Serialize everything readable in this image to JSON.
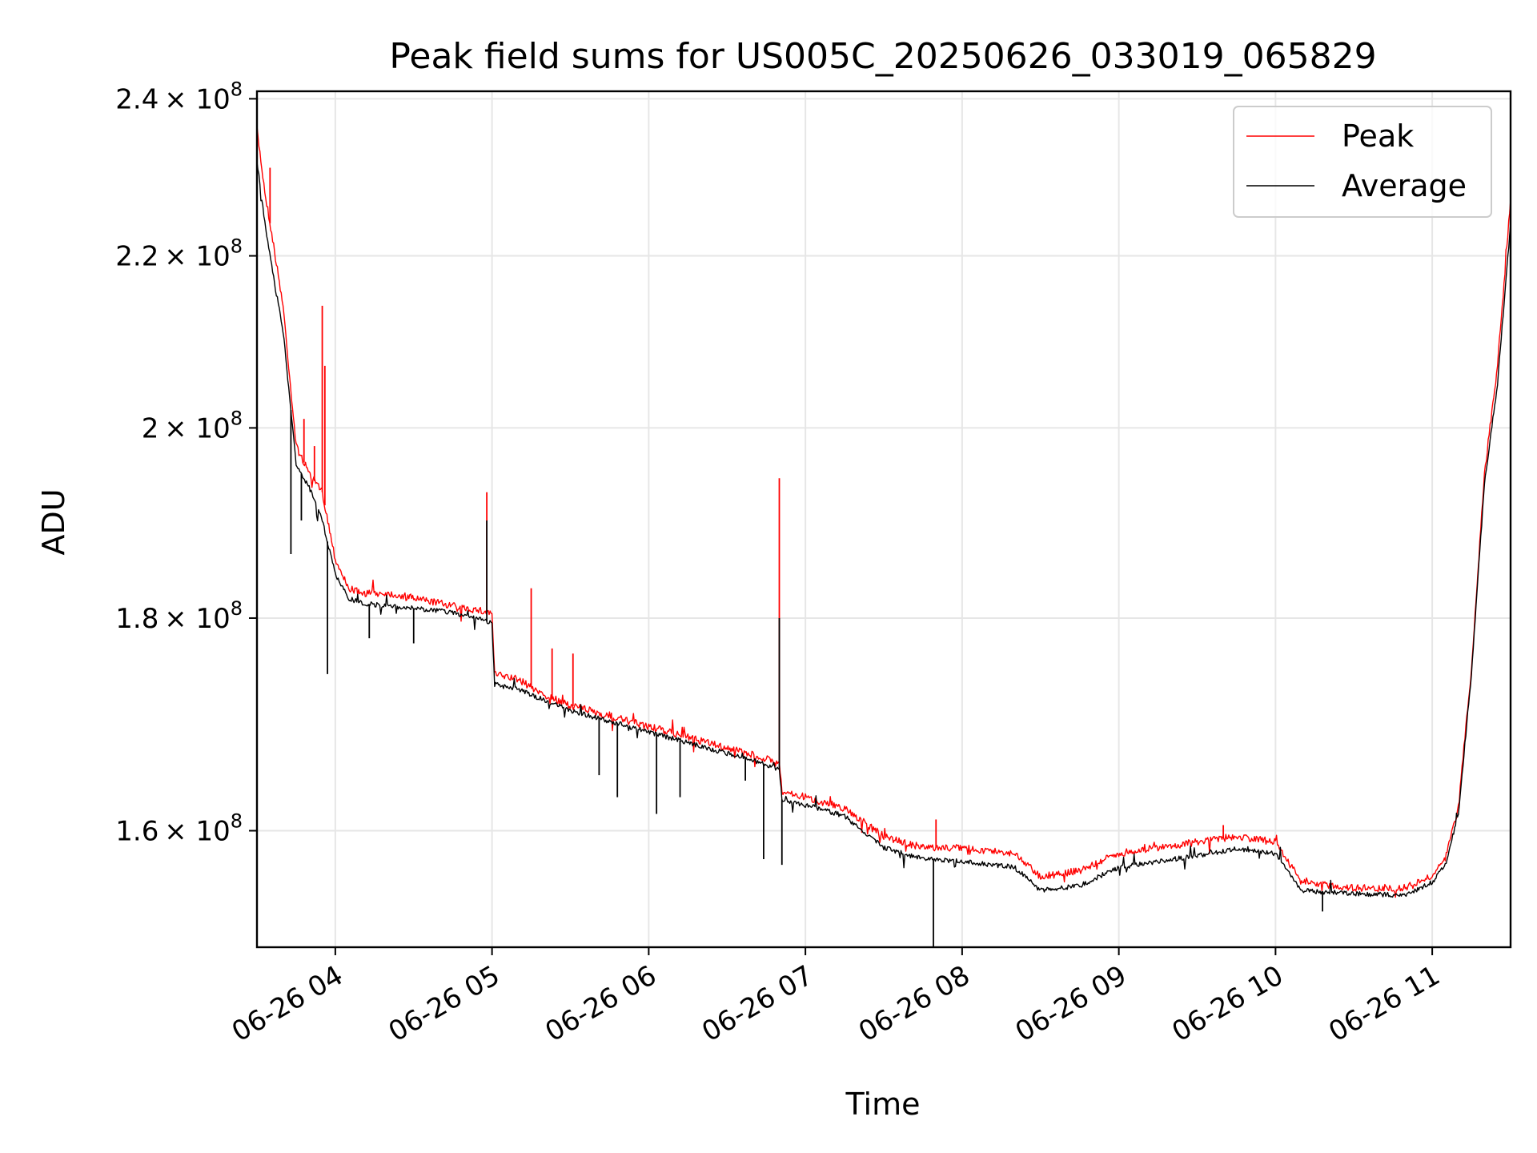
{
  "chart_data": {
    "type": "line",
    "title": "Peak field sums for US005C_20250626_033019_065829",
    "xlabel": "Time",
    "ylabel": "ADU",
    "y_scale": "log",
    "xlim": [
      "2025-06-26 03:30",
      "2025-06-26 11:30"
    ],
    "ylim": [
      150000000,
      241000000
    ],
    "grid": true,
    "legend_position": "top-right",
    "x_ticks": [
      {
        "label": "06-26 04",
        "t": "2025-06-26 04:00"
      },
      {
        "label": "06-26 05",
        "t": "2025-06-26 05:00"
      },
      {
        "label": "06-26 06",
        "t": "2025-06-26 06:00"
      },
      {
        "label": "06-26 07",
        "t": "2025-06-26 07:00"
      },
      {
        "label": "06-26 08",
        "t": "2025-06-26 08:00"
      },
      {
        "label": "06-26 09",
        "t": "2025-06-26 09:00"
      },
      {
        "label": "06-26 10",
        "t": "2025-06-26 10:00"
      },
      {
        "label": "06-26 11",
        "t": "2025-06-26 11:00"
      }
    ],
    "y_ticks": [
      {
        "mantissa": "2.4",
        "value": 240000000
      },
      {
        "mantissa": "2.2",
        "value": 220000000
      },
      {
        "mantissa": "2",
        "value": 200000000
      },
      {
        "mantissa": "1.8",
        "value": 180000000
      },
      {
        "mantissa": "1.6",
        "value": 160000000
      }
    ],
    "y_tick_suffix": "× 10",
    "y_tick_exponent": "8",
    "series": [
      {
        "name": "Peak",
        "color": "#ff0000",
        "points": [
          [
            "2025-06-26 03:30",
            236000000
          ],
          [
            "2025-06-26 03:33",
            228000000
          ],
          [
            "2025-06-26 03:36",
            222000000
          ],
          [
            "2025-06-26 03:40",
            214000000
          ],
          [
            "2025-06-26 03:45",
            198000000
          ],
          [
            "2025-06-26 03:50",
            195000000
          ],
          [
            "2025-06-26 03:55",
            193000000
          ],
          [
            "2025-06-26 04:00",
            186000000
          ],
          [
            "2025-06-26 04:05",
            183000000
          ],
          [
            "2025-06-26 04:10",
            182500000
          ],
          [
            "2025-06-26 04:20",
            182500000
          ],
          [
            "2025-06-26 04:30",
            182000000
          ],
          [
            "2025-06-26 04:40",
            181500000
          ],
          [
            "2025-06-26 04:50",
            181000000
          ],
          [
            "2025-06-26 05:00",
            180500000
          ],
          [
            "2025-06-26 05:01",
            174500000
          ],
          [
            "2025-06-26 05:10",
            174000000
          ],
          [
            "2025-06-26 05:20",
            172500000
          ],
          [
            "2025-06-26 05:30",
            171500000
          ],
          [
            "2025-06-26 05:45",
            170500000
          ],
          [
            "2025-06-26 06:00",
            169500000
          ],
          [
            "2025-06-26 06:15",
            168500000
          ],
          [
            "2025-06-26 06:30",
            167500000
          ],
          [
            "2025-06-26 06:45",
            166500000
          ],
          [
            "2025-06-26 06:50",
            166000000
          ],
          [
            "2025-06-26 06:51",
            163500000
          ],
          [
            "2025-06-26 07:00",
            163000000
          ],
          [
            "2025-06-26 07:15",
            162000000
          ],
          [
            "2025-06-26 07:30",
            159500000
          ],
          [
            "2025-06-26 07:45",
            158500000
          ],
          [
            "2025-06-26 08:00",
            158500000
          ],
          [
            "2025-06-26 08:20",
            158000000
          ],
          [
            "2025-06-26 08:30",
            156000000
          ],
          [
            "2025-06-26 08:45",
            156500000
          ],
          [
            "2025-06-26 09:00",
            158000000
          ],
          [
            "2025-06-26 09:15",
            158500000
          ],
          [
            "2025-06-26 09:30",
            159000000
          ],
          [
            "2025-06-26 09:45",
            159500000
          ],
          [
            "2025-06-26 10:00",
            159000000
          ],
          [
            "2025-06-26 10:10",
            155500000
          ],
          [
            "2025-06-26 10:30",
            155000000
          ],
          [
            "2025-06-26 10:50",
            155000000
          ],
          [
            "2025-06-26 11:00",
            156000000
          ],
          [
            "2025-06-26 11:05",
            157500000
          ],
          [
            "2025-06-26 11:10",
            162000000
          ],
          [
            "2025-06-26 11:15",
            175000000
          ],
          [
            "2025-06-26 11:20",
            195000000
          ],
          [
            "2025-06-26 11:25",
            207000000
          ],
          [
            "2025-06-26 11:30",
            227000000
          ]
        ]
      },
      {
        "name": "Average",
        "color": "#000000",
        "points": [
          [
            "2025-06-26 03:30",
            232000000
          ],
          [
            "2025-06-26 03:33",
            224000000
          ],
          [
            "2025-06-26 03:36",
            218000000
          ],
          [
            "2025-06-26 03:40",
            211000000
          ],
          [
            "2025-06-26 03:45",
            196000000
          ],
          [
            "2025-06-26 03:50",
            193500000
          ],
          [
            "2025-06-26 03:55",
            190000000
          ],
          [
            "2025-06-26 04:00",
            184500000
          ],
          [
            "2025-06-26 04:05",
            182000000
          ],
          [
            "2025-06-26 04:10",
            181500000
          ],
          [
            "2025-06-26 04:20",
            181200000
          ],
          [
            "2025-06-26 04:30",
            181000000
          ],
          [
            "2025-06-26 04:40",
            180700000
          ],
          [
            "2025-06-26 04:50",
            180300000
          ],
          [
            "2025-06-26 05:00",
            179500000
          ],
          [
            "2025-06-26 05:01",
            173500000
          ],
          [
            "2025-06-26 05:10",
            173000000
          ],
          [
            "2025-06-26 05:20",
            172000000
          ],
          [
            "2025-06-26 05:30",
            171000000
          ],
          [
            "2025-06-26 05:45",
            170000000
          ],
          [
            "2025-06-26 06:00",
            169000000
          ],
          [
            "2025-06-26 06:15",
            168000000
          ],
          [
            "2025-06-26 06:30",
            167000000
          ],
          [
            "2025-06-26 06:45",
            166000000
          ],
          [
            "2025-06-26 06:50",
            165500000
          ],
          [
            "2025-06-26 06:51",
            162800000
          ],
          [
            "2025-06-26 07:00",
            162300000
          ],
          [
            "2025-06-26 07:15",
            161300000
          ],
          [
            "2025-06-26 07:30",
            158500000
          ],
          [
            "2025-06-26 07:45",
            157500000
          ],
          [
            "2025-06-26 08:00",
            157300000
          ],
          [
            "2025-06-26 08:20",
            156800000
          ],
          [
            "2025-06-26 08:30",
            154800000
          ],
          [
            "2025-06-26 08:45",
            155200000
          ],
          [
            "2025-06-26 09:00",
            156800000
          ],
          [
            "2025-06-26 09:15",
            157300000
          ],
          [
            "2025-06-26 09:30",
            157800000
          ],
          [
            "2025-06-26 09:45",
            158400000
          ],
          [
            "2025-06-26 10:00",
            158000000
          ],
          [
            "2025-06-26 10:10",
            154800000
          ],
          [
            "2025-06-26 10:30",
            154500000
          ],
          [
            "2025-06-26 10:50",
            154400000
          ],
          [
            "2025-06-26 11:00",
            155500000
          ],
          [
            "2025-06-26 11:05",
            157000000
          ],
          [
            "2025-06-26 11:10",
            161500000
          ],
          [
            "2025-06-26 11:15",
            174500000
          ],
          [
            "2025-06-26 11:20",
            194000000
          ],
          [
            "2025-06-26 11:25",
            205000000
          ],
          [
            "2025-06-26 11:30",
            224000000
          ]
        ]
      }
    ],
    "spikes": [
      {
        "series": "Peak",
        "t": "2025-06-26 03:30",
        "value": 241000000
      },
      {
        "series": "Peak",
        "t": "2025-06-26 03:35",
        "value": 231000000
      },
      {
        "series": "Peak",
        "t": "2025-06-26 03:48",
        "value": 201000000
      },
      {
        "series": "Peak",
        "t": "2025-06-26 03:52",
        "value": 198000000
      },
      {
        "series": "Peak",
        "t": "2025-06-26 03:55",
        "value": 214000000
      },
      {
        "series": "Peak",
        "t": "2025-06-26 03:56",
        "value": 207000000
      },
      {
        "series": "Peak",
        "t": "2025-06-26 04:58",
        "value": 193000000
      },
      {
        "series": "Peak",
        "t": "2025-06-26 05:15",
        "value": 183000000
      },
      {
        "series": "Peak",
        "t": "2025-06-26 05:23",
        "value": 177000000
      },
      {
        "series": "Peak",
        "t": "2025-06-26 05:31",
        "value": 176500000
      },
      {
        "series": "Peak",
        "t": "2025-06-26 06:50",
        "value": 194500000
      },
      {
        "series": "Peak",
        "t": "2025-06-26 07:50",
        "value": 161000000
      },
      {
        "series": "Peak",
        "t": "2025-06-26 09:40",
        "value": 160500000
      },
      {
        "series": "Average",
        "t": "2025-06-26 03:43",
        "value": 186500000
      },
      {
        "series": "Average",
        "t": "2025-06-26 03:47",
        "value": 190000000
      },
      {
        "series": "Average",
        "t": "2025-06-26 03:57",
        "value": 174500000
      },
      {
        "series": "Average",
        "t": "2025-06-26 04:13",
        "value": 178000000
      },
      {
        "series": "Average",
        "t": "2025-06-26 04:30",
        "value": 177500000
      },
      {
        "series": "Average",
        "t": "2025-06-26 04:58",
        "value": 190000000
      },
      {
        "series": "Average",
        "t": "2025-06-26 05:41",
        "value": 165000000
      },
      {
        "series": "Average",
        "t": "2025-06-26 05:48",
        "value": 163000000
      },
      {
        "series": "Average",
        "t": "2025-06-26 06:03",
        "value": 161500000
      },
      {
        "series": "Average",
        "t": "2025-06-26 06:12",
        "value": 163000000
      },
      {
        "series": "Average",
        "t": "2025-06-26 06:37",
        "value": 164500000
      },
      {
        "series": "Average",
        "t": "2025-06-26 06:44",
        "value": 157500000
      },
      {
        "series": "Average",
        "t": "2025-06-26 06:50",
        "value": 180000000
      },
      {
        "series": "Average",
        "t": "2025-06-26 06:51",
        "value": 157000000
      },
      {
        "series": "Average",
        "t": "2025-06-26 07:49",
        "value": 150000000
      },
      {
        "series": "Average",
        "t": "2025-06-26 10:18",
        "value": 153000000
      }
    ]
  }
}
